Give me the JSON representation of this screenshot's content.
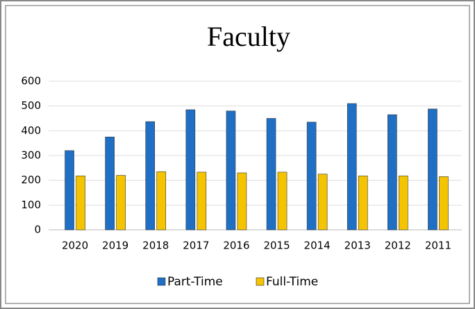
{
  "chart_data": {
    "type": "bar",
    "title": "Faculty",
    "categories": [
      "2020",
      "2019",
      "2018",
      "2017",
      "2016",
      "2015",
      "2014",
      "2013",
      "2012",
      "2011"
    ],
    "series": [
      {
        "name": "Part-Time",
        "color": "#1f6fc5",
        "values": [
          320,
          375,
          437,
          485,
          480,
          450,
          435,
          510,
          465,
          488
        ]
      },
      {
        "name": "Full-Time",
        "color": "#f5c400",
        "values": [
          218,
          220,
          235,
          233,
          230,
          233,
          225,
          218,
          218,
          215
        ]
      }
    ],
    "ylim": [
      0,
      600
    ],
    "yticks": [
      0,
      100,
      200,
      300,
      400,
      500,
      600
    ],
    "grid": true,
    "legend": "bottom"
  }
}
